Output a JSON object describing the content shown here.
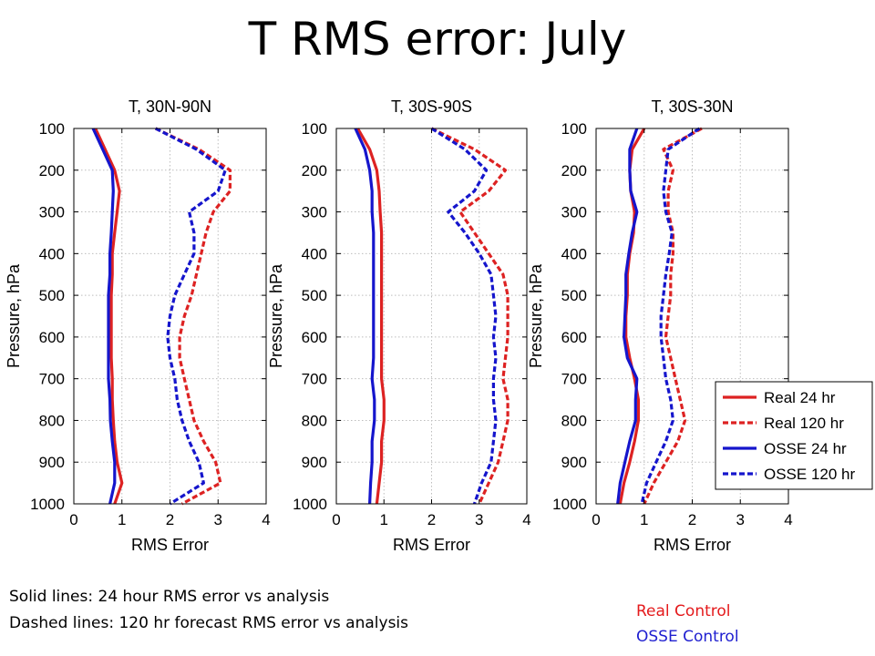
{
  "slide": {
    "title": "T RMS error: July",
    "note_solid": "Solid lines: 24 hour RMS error vs analysis",
    "note_dashed": "Dashed lines: 120 hr forecast RMS error vs analysis",
    "real_control": "Real Control",
    "osse_control": "OSSE Control",
    "real_color": "#e41a1c",
    "osse_color": "#1f1fd0"
  },
  "legend": {
    "placement": "lower-right of third panel",
    "entries": [
      {
        "label": "Real 24 hr",
        "color": "#dd2222",
        "dash": false
      },
      {
        "label": "Real 120 hr",
        "color": "#dd2222",
        "dash": true
      },
      {
        "label": "OSSE 24 hr",
        "color": "#1515cc",
        "dash": false
      },
      {
        "label": "OSSE 120 hr",
        "color": "#1515cc",
        "dash": true
      }
    ]
  },
  "chart_data": [
    {
      "type": "line",
      "title": "T, 30N-90N",
      "xlabel": "RMS Error",
      "ylabel": "Pressure, hPa",
      "xlim": [
        0,
        4
      ],
      "ylim": [
        100,
        1000
      ],
      "y_inverted": true,
      "grid": true,
      "xticks": [
        "0",
        "1",
        "2",
        "3",
        "4"
      ],
      "yticks": [
        "100",
        "200",
        "300",
        "400",
        "500",
        "600",
        "700",
        "800",
        "900",
        "1000"
      ],
      "pressure": [
        100,
        150,
        200,
        250,
        300,
        350,
        400,
        450,
        500,
        550,
        600,
        650,
        700,
        750,
        800,
        850,
        900,
        950,
        1000
      ],
      "series": [
        {
          "name": "Real 24 hr",
          "values": [
            0.45,
            0.65,
            0.85,
            0.95,
            0.9,
            0.85,
            0.8,
            0.8,
            0.78,
            0.78,
            0.78,
            0.78,
            0.8,
            0.8,
            0.82,
            0.85,
            0.9,
            1.0,
            0.85
          ]
        },
        {
          "name": "Real 120 hr",
          "values": [
            1.7,
            2.6,
            3.25,
            3.25,
            2.9,
            2.75,
            2.65,
            2.55,
            2.45,
            2.3,
            2.2,
            2.2,
            2.3,
            2.4,
            2.5,
            2.7,
            2.95,
            3.05,
            2.25
          ]
        },
        {
          "name": "OSSE 24 hr",
          "values": [
            0.4,
            0.6,
            0.8,
            0.82,
            0.8,
            0.78,
            0.75,
            0.75,
            0.72,
            0.72,
            0.72,
            0.72,
            0.72,
            0.75,
            0.76,
            0.8,
            0.85,
            0.85,
            0.75
          ]
        },
        {
          "name": "OSSE 120 hr",
          "values": [
            1.7,
            2.55,
            3.15,
            3.0,
            2.4,
            2.5,
            2.5,
            2.3,
            2.1,
            2.0,
            1.95,
            2.0,
            2.1,
            2.15,
            2.25,
            2.4,
            2.6,
            2.7,
            2.0
          ]
        }
      ]
    },
    {
      "type": "line",
      "title": "T, 30S-90S",
      "xlabel": "RMS Error",
      "ylabel": "Pressure, hPa",
      "xlim": [
        0,
        4
      ],
      "ylim": [
        100,
        1000
      ],
      "y_inverted": true,
      "grid": true,
      "xticks": [
        "0",
        "1",
        "2",
        "3",
        "4"
      ],
      "yticks": [
        "100",
        "200",
        "300",
        "400",
        "500",
        "600",
        "700",
        "800",
        "900",
        "1000"
      ],
      "pressure": [
        100,
        150,
        200,
        250,
        300,
        350,
        400,
        450,
        500,
        550,
        600,
        650,
        700,
        750,
        800,
        850,
        900,
        950,
        1000
      ],
      "series": [
        {
          "name": "Real 24 hr",
          "values": [
            0.45,
            0.7,
            0.85,
            0.9,
            0.92,
            0.95,
            0.95,
            0.95,
            0.95,
            0.95,
            0.95,
            0.95,
            0.95,
            1.0,
            1.0,
            0.95,
            0.95,
            0.9,
            0.85
          ]
        },
        {
          "name": "Real 120 hr",
          "values": [
            2.0,
            2.9,
            3.55,
            3.2,
            2.6,
            2.9,
            3.2,
            3.5,
            3.6,
            3.6,
            3.6,
            3.55,
            3.5,
            3.6,
            3.6,
            3.5,
            3.4,
            3.2,
            3.0
          ]
        },
        {
          "name": "OSSE 24 hr",
          "values": [
            0.4,
            0.6,
            0.7,
            0.75,
            0.75,
            0.78,
            0.78,
            0.78,
            0.78,
            0.78,
            0.78,
            0.78,
            0.75,
            0.8,
            0.8,
            0.75,
            0.75,
            0.72,
            0.7
          ]
        },
        {
          "name": "OSSE 120 hr",
          "values": [
            2.0,
            2.7,
            3.15,
            2.9,
            2.35,
            2.7,
            3.0,
            3.25,
            3.3,
            3.35,
            3.3,
            3.35,
            3.3,
            3.3,
            3.35,
            3.3,
            3.25,
            3.05,
            2.9
          ]
        }
      ]
    },
    {
      "type": "line",
      "title": "T, 30S-30N",
      "xlabel": "RMS Error",
      "ylabel": "Pressure, hPa",
      "xlim": [
        0,
        4
      ],
      "ylim": [
        100,
        1000
      ],
      "y_inverted": true,
      "grid": true,
      "xticks": [
        "0",
        "1",
        "2",
        "3",
        "4"
      ],
      "yticks": [
        "100",
        "200",
        "300",
        "400",
        "500",
        "600",
        "700",
        "800",
        "900",
        "1000"
      ],
      "pressure": [
        100,
        150,
        200,
        250,
        300,
        350,
        400,
        450,
        500,
        550,
        600,
        650,
        700,
        750,
        800,
        850,
        900,
        950,
        1000
      ],
      "series": [
        {
          "name": "Real 24 hr",
          "values": [
            1.0,
            0.75,
            0.7,
            0.72,
            0.8,
            0.78,
            0.7,
            0.65,
            0.65,
            0.62,
            0.62,
            0.7,
            0.8,
            0.88,
            0.88,
            0.8,
            0.7,
            0.58,
            0.5
          ]
        },
        {
          "name": "Real 120 hr",
          "values": [
            2.2,
            1.4,
            1.6,
            1.5,
            1.5,
            1.6,
            1.6,
            1.55,
            1.55,
            1.5,
            1.45,
            1.55,
            1.65,
            1.75,
            1.85,
            1.7,
            1.45,
            1.2,
            1.0
          ]
        },
        {
          "name": "OSSE 24 hr",
          "values": [
            0.85,
            0.7,
            0.7,
            0.72,
            0.85,
            0.75,
            0.68,
            0.62,
            0.62,
            0.6,
            0.58,
            0.65,
            0.85,
            0.82,
            0.82,
            0.7,
            0.6,
            0.5,
            0.45
          ]
        },
        {
          "name": "OSSE 120 hr",
          "values": [
            2.15,
            1.5,
            1.45,
            1.4,
            1.45,
            1.58,
            1.52,
            1.45,
            1.4,
            1.35,
            1.35,
            1.4,
            1.45,
            1.55,
            1.6,
            1.45,
            1.25,
            1.05,
            0.95
          ]
        }
      ]
    }
  ]
}
